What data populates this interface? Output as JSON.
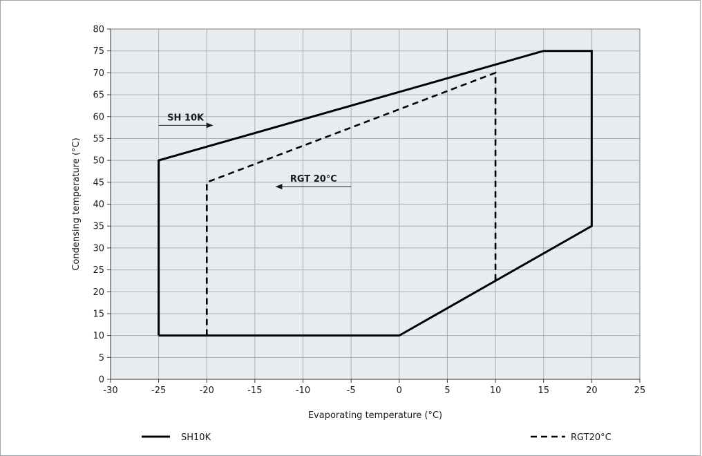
{
  "chart_data": {
    "type": "line",
    "title": "",
    "xlabel": "Evaporating temperature (°C)",
    "ylabel": "Condensing temperature (°C)",
    "xlim": [
      -30,
      25
    ],
    "ylim": [
      0,
      80
    ],
    "x_ticks": [
      -30,
      -25,
      -20,
      -15,
      -10,
      -5,
      0,
      5,
      10,
      15,
      20,
      25
    ],
    "y_ticks": [
      0,
      5,
      10,
      15,
      20,
      25,
      30,
      35,
      40,
      45,
      50,
      55,
      60,
      65,
      70,
      75,
      80
    ],
    "grid": true,
    "background": "#e9ecee",
    "legend_placement": "bottom",
    "series": [
      {
        "name": "SH10K",
        "style": "solid",
        "color": "#000000",
        "points": [
          [
            -25,
            10
          ],
          [
            -25,
            50
          ],
          [
            15,
            75
          ],
          [
            20,
            75
          ],
          [
            20,
            35
          ],
          [
            0,
            10
          ],
          [
            -25,
            10
          ]
        ]
      },
      {
        "name": "RGT20°C",
        "style": "dashed",
        "color": "#000000",
        "points": [
          [
            -20,
            10
          ],
          [
            -20,
            45
          ],
          [
            10,
            70
          ],
          [
            10,
            22.5
          ]
        ]
      }
    ],
    "annotations": [
      {
        "text": "SH 10K",
        "arrow_from": [
          -25,
          58
        ],
        "arrow_to": [
          -19.4,
          58
        ]
      },
      {
        "text": "RGT 20°C",
        "arrow_from": [
          -5,
          44
        ],
        "arrow_to": [
          -12.8,
          44
        ]
      }
    ]
  }
}
